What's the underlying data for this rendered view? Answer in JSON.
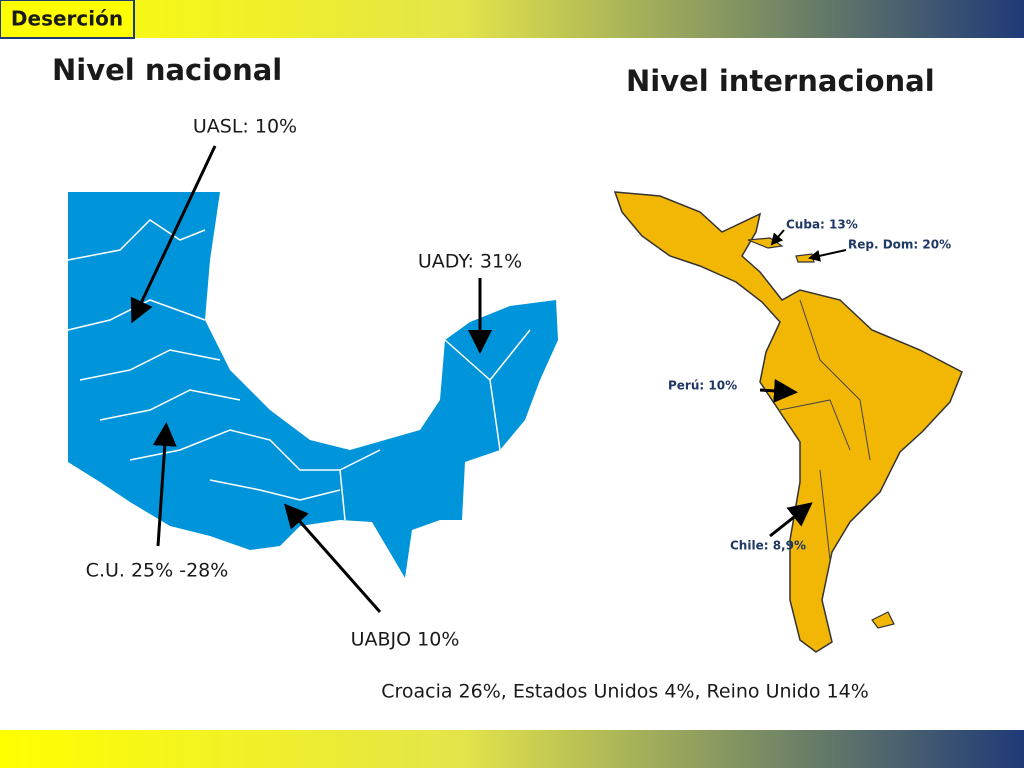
{
  "header": {
    "title": "Deserción"
  },
  "national": {
    "title": "Nivel nacional",
    "labels": [
      "UASL: 10%",
      "UADY: 31%",
      "C.U.  25% -28%",
      "UABJO  10%"
    ]
  },
  "international": {
    "title": "Nivel internacional",
    "labels": [
      "Cuba: 13%",
      "Rep. Dom: 20%",
      "Perú: 10%",
      "Chile: 8,9%"
    ]
  },
  "footer": {
    "note": "Croacia 26%, Estados Unidos 4%, Reino Unido 14%"
  }
}
